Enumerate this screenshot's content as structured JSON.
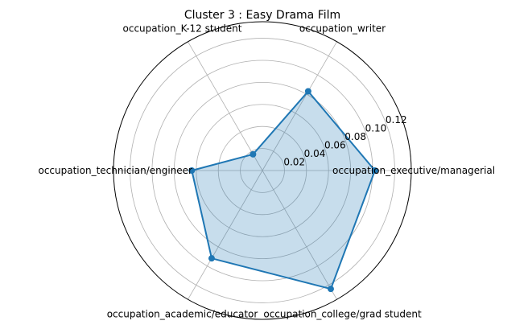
{
  "chart_data": {
    "type": "radar",
    "title": "Cluster 3 : Easy Drama Film",
    "categories": [
      "occupation_executive/managerial",
      "occupation_writer",
      "occupation_K-12 student",
      "occupation_technician/engineer",
      "occupation_academic/educator",
      "occupation_college/grad student"
    ],
    "series": [
      {
        "values": [
          0.102,
          0.083,
          0.017,
          0.064,
          0.092,
          0.124
        ]
      }
    ],
    "r_ticks": [
      "0.02",
      "0.04",
      "0.06",
      "0.08",
      "0.10",
      "0.12"
    ],
    "r_tick_values": [
      0.02,
      0.04,
      0.06,
      0.08,
      0.1,
      0.12
    ],
    "rlim": [
      0,
      0.135
    ],
    "grid": true,
    "colors": {
      "line": "#1f77b4",
      "fill": "#1f77b4",
      "grid": "#b0b0b0",
      "spine": "#000000"
    }
  }
}
